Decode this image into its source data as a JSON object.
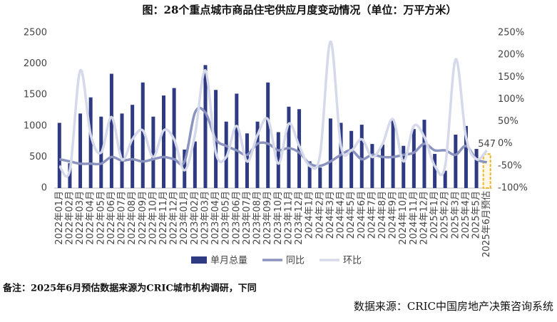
{
  "chart_data": {
    "type": "bar",
    "title": "图：28个重点城市商品住宅供应月度变动情况（单位：万平方米）",
    "categories": [
      "2022年01月",
      "2022年02月",
      "2022年03月",
      "2022年04月",
      "2022年05月",
      "2022年06月",
      "2022年07月",
      "2022年08月",
      "2022年09月",
      "2022年10月",
      "2022年11月",
      "2022年12月",
      "2023年01月",
      "2023年02月",
      "2023年03月",
      "2023年04月",
      "2023年05月",
      "2023年06月",
      "2023年07月",
      "2023年08月",
      "2023年09月",
      "2023年10月",
      "2023年11月",
      "2023年12月",
      "2024年1月",
      "2024年2月",
      "2024年3月",
      "2024年4月",
      "2024年5月",
      "2024年6月",
      "2024年7月",
      "2024年8月",
      "2024年9月",
      "2024年10月",
      "2024年11月",
      "2024年12月",
      "2025年1月",
      "2025年2月",
      "2025年3月",
      "2025年4月",
      "2025年5月",
      "2025年6月预估"
    ],
    "series": [
      {
        "name": "单月总量",
        "type": "bar",
        "color": "#2e3b83",
        "values": [
          1050,
          400,
          1200,
          1460,
          1150,
          1840,
          1200,
          1340,
          1700,
          1150,
          1490,
          1610,
          620,
          750,
          1980,
          1580,
          1070,
          1520,
          880,
          1070,
          1700,
          900,
          1310,
          1270,
          430,
          330,
          1120,
          1050,
          920,
          1020,
          710,
          700,
          1100,
          680,
          950,
          1100,
          550,
          280,
          860,
          1000,
          630,
          547
        ]
      },
      {
        "name": "同比",
        "type": "line",
        "axis": "y2",
        "color": "#8b93bf",
        "values": [
          -35,
          -40,
          -45,
          -45,
          -45,
          -30,
          -38,
          -35,
          -40,
          -35,
          -30,
          -35,
          -40,
          70,
          70,
          10,
          -5,
          -15,
          -25,
          0,
          0,
          -15,
          -10,
          -20,
          -45,
          -50,
          -40,
          -25,
          -15,
          -35,
          -25,
          -30,
          -30,
          -25,
          -20,
          0,
          -15,
          -15,
          -25,
          -5,
          -35,
          -42
        ]
      },
      {
        "name": "环比",
        "type": "line",
        "axis": "y2",
        "color": "#d5d9ea",
        "values": [
          -50,
          -60,
          165,
          20,
          -20,
          60,
          -35,
          10,
          30,
          -30,
          30,
          10,
          -60,
          20,
          165,
          -20,
          -30,
          40,
          -40,
          20,
          55,
          -45,
          45,
          -5,
          -50,
          -25,
          230,
          -5,
          -15,
          10,
          -30,
          0,
          55,
          -40,
          40,
          15,
          -50,
          -50,
          190,
          15,
          -35,
          -15
        ]
      }
    ],
    "forecast_color": "#f0b323",
    "ylim": [
      0,
      2500
    ],
    "yticks": [
      0,
      500,
      1000,
      1500,
      2000,
      2500
    ],
    "y2lim": [
      -100,
      250
    ],
    "y2ticks": [
      {
        "value": -100,
        "label": "-100%"
      },
      {
        "value": -50,
        "label": "-50%"
      },
      {
        "value": 0,
        "label": "0%"
      },
      {
        "value": 50,
        "label": "50%"
      },
      {
        "value": 100,
        "label": "100%"
      },
      {
        "value": 150,
        "label": "150%"
      },
      {
        "value": 200,
        "label": "200%"
      },
      {
        "value": 250,
        "label": "250%"
      }
    ],
    "legend": "bottom",
    "note": "备注：2025年6月预估数据来源为CRIC城市机构调研，下同",
    "source": "数据来源：CRIC中国房地产决策咨询系统"
  }
}
